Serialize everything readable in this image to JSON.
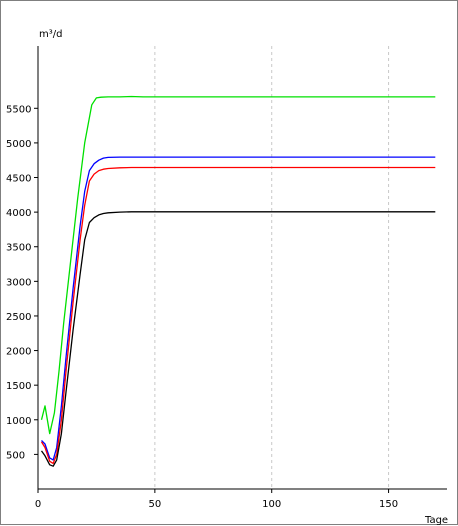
{
  "chart_data": {
    "type": "line",
    "xlabel": "Tage",
    "ylabel": "m³/d",
    "xlim": [
      0,
      175
    ],
    "ylim": [
      0,
      6400
    ],
    "x_ticks": [
      0,
      50,
      100,
      150
    ],
    "y_ticks": [
      500,
      1000,
      1500,
      2000,
      2500,
      3000,
      3500,
      4000,
      4500,
      5000,
      5500
    ],
    "grid": true,
    "grid_axis": "x",
    "legend": "none",
    "series": [
      {
        "color": "#00e000",
        "x": [
          1.5,
          3,
          5,
          7,
          9,
          11,
          14,
          17,
          20,
          23,
          25,
          27,
          30,
          35,
          40,
          45,
          50,
          100,
          150,
          170
        ],
        "y": [
          1000,
          1200,
          800,
          1100,
          1700,
          2400,
          3300,
          4200,
          5000,
          5550,
          5650,
          5660,
          5665,
          5665,
          5670,
          5665,
          5665,
          5665,
          5665,
          5665
        ]
      },
      {
        "color": "#0000ff",
        "x": [
          1.5,
          3,
          5,
          6.5,
          8,
          10,
          12,
          15,
          18,
          20,
          22,
          24,
          26,
          28,
          30,
          35,
          40,
          50,
          100,
          150,
          170
        ],
        "y": [
          700,
          650,
          450,
          420,
          600,
          1200,
          1900,
          2900,
          3800,
          4300,
          4600,
          4700,
          4750,
          4780,
          4790,
          4795,
          4795,
          4795,
          4795,
          4795,
          4795
        ]
      },
      {
        "color": "#ff0000",
        "x": [
          1.5,
          3,
          5,
          6.5,
          8,
          10,
          12,
          15,
          18,
          20,
          22,
          24,
          26,
          28,
          30,
          35,
          40,
          50,
          100,
          150,
          170
        ],
        "y": [
          680,
          600,
          400,
          370,
          500,
          1000,
          1700,
          2700,
          3600,
          4100,
          4450,
          4550,
          4600,
          4620,
          4630,
          4640,
          4645,
          4645,
          4645,
          4645,
          4645
        ]
      },
      {
        "color": "#000000",
        "x": [
          1.5,
          3,
          5,
          6.5,
          8,
          10,
          12,
          15,
          18,
          20,
          22,
          24,
          26,
          28,
          30,
          35,
          40,
          50,
          100,
          150,
          170
        ],
        "y": [
          550,
          480,
          350,
          330,
          420,
          800,
          1400,
          2300,
          3100,
          3600,
          3850,
          3920,
          3960,
          3980,
          3990,
          4000,
          4005,
          4005,
          4005,
          4005,
          4005
        ]
      }
    ]
  }
}
